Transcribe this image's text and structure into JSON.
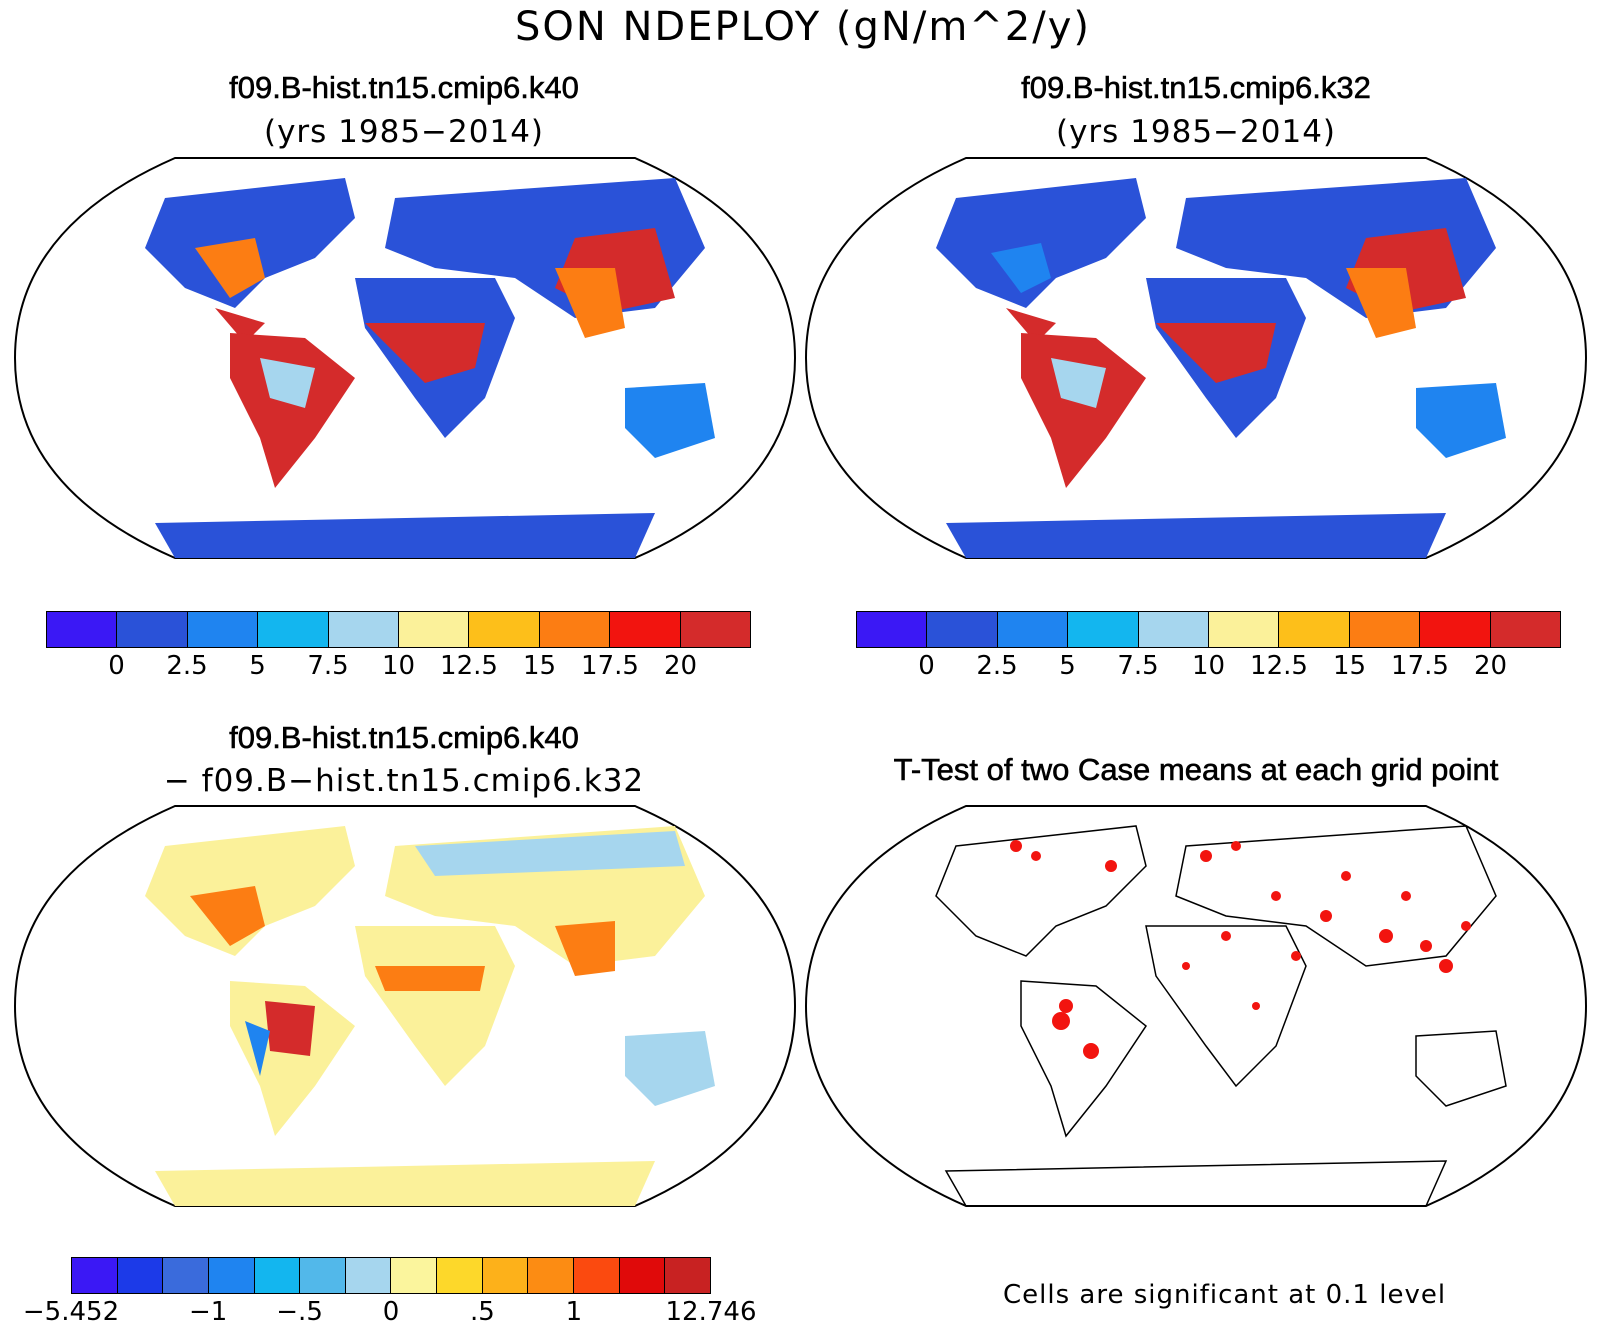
{
  "title": "SON NDEPLOY (gN/m^2/y)",
  "panels": {
    "top_left": {
      "title": "f09.B-hist.tn15.cmip6.k40",
      "subtitle": "(yrs 1985−2014)"
    },
    "top_right": {
      "title": "f09.B-hist.tn15.cmip6.k32",
      "subtitle": "(yrs 1985−2014)"
    },
    "bottom_left": {
      "title": "f09.B-hist.tn15.cmip6.k40",
      "subtitle": "− f09.B−hist.tn15.cmip6.k32"
    },
    "bottom_right": {
      "title": "T-Test of two Case means at each grid point"
    }
  },
  "colorbar_main": {
    "colors": [
      "#3b18f5",
      "#2a52d8",
      "#1f84f0",
      "#13b6ef",
      "#a6d6ee",
      "#fbf19a",
      "#fdbf1a",
      "#fc7d13",
      "#f2140f",
      "#d42b2b"
    ],
    "labels": [
      "0",
      "2.5",
      "5",
      "7.5",
      "10",
      "12.5",
      "15",
      "17.5",
      "20"
    ]
  },
  "colorbar_diff": {
    "colors": [
      "#3b18f5",
      "#1c3ae8",
      "#3a6bdc",
      "#1f84f0",
      "#13b6ef",
      "#52b8ea",
      "#a6d6ee",
      "#fbf59d",
      "#fdd82a",
      "#fdb11a",
      "#fc8c13",
      "#fb4a0f",
      "#e00a0a",
      "#c82222"
    ],
    "labels": [
      "−5.452",
      "−1",
      "−.5",
      "0",
      ".5",
      "1",
      "12.746"
    ]
  },
  "significance_note": "Cells are significant at 0.1 level",
  "map_colors": {
    "land_low": "#2a52d8",
    "land_mid": "#13b6ef",
    "land_high": "#d42b2b",
    "land_orange": "#fc7d13",
    "diff_base": "#fbf19a",
    "sig_cell": "#f2140f"
  }
}
